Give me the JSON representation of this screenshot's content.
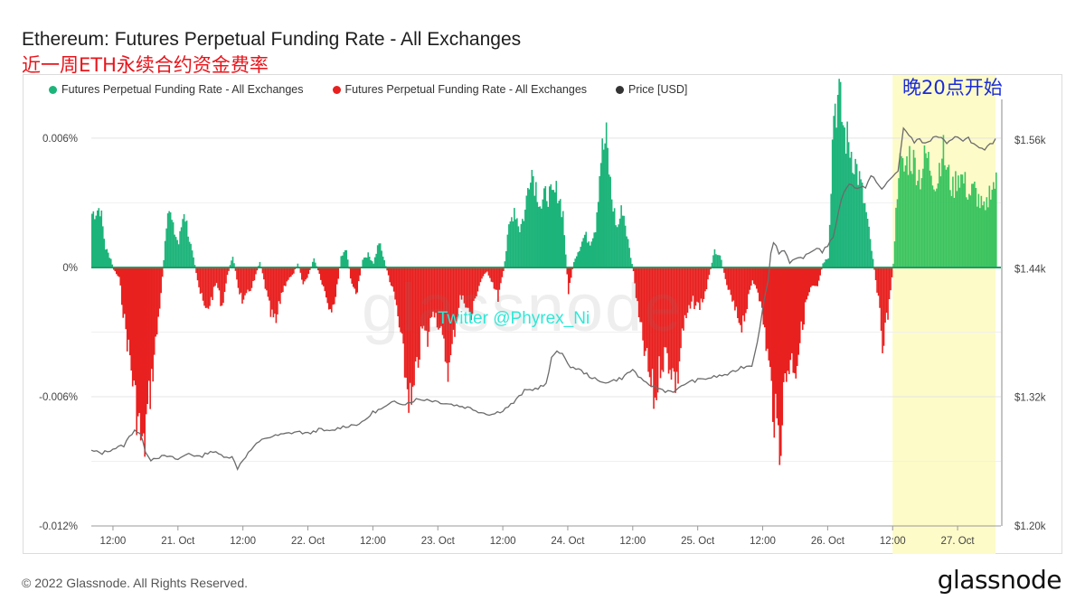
{
  "header": {
    "title": "Ethereum: Futures Perpetual Funding Rate - All Exchanges",
    "subtitle": "近一周ETH永续合约资金费率"
  },
  "legend": [
    {
      "label": "Futures Perpetual Funding Rate - All Exchanges",
      "color": "#1db47a"
    },
    {
      "label": "Futures Perpetual Funding Rate - All Exchanges",
      "color": "#e8201f"
    },
    {
      "label": "Price [USD]",
      "color": "#333333"
    }
  ],
  "annotations": {
    "highlight_note": "晚20点开始",
    "twitter": "Twitter @Phyrex_Ni",
    "watermark": "glassnode"
  },
  "footer": {
    "copyright": "© 2022 Glassnode. All Rights Reserved.",
    "logo": "glassnode"
  },
  "colors": {
    "positive": "#1db47a",
    "positive_highlight": "#3cc460",
    "negative": "#e8201f",
    "price": "#6b6b6b",
    "highlight": "#fdfbc8"
  },
  "chart_data": {
    "type": "bar",
    "x_ticks": [
      "12:00",
      "21. Oct",
      "12:00",
      "22. Oct",
      "12:00",
      "23. Oct",
      "12:00",
      "24. Oct",
      "12:00",
      "25. Oct",
      "12:00",
      "26. Oct",
      "12:00",
      "27. Oct"
    ],
    "x_tick_hours": [
      12,
      24,
      36,
      48,
      60,
      72,
      84,
      96,
      108,
      120,
      132,
      144,
      156,
      168
    ],
    "x_range_hours": [
      8,
      176
    ],
    "left_axis": {
      "ticks": [
        "0.006%",
        "0%",
        "-0.006%",
        "-0.012%"
      ],
      "tick_values": [
        0.006,
        0,
        -0.006,
        -0.012
      ],
      "range": [
        -0.012,
        0.0078
      ]
    },
    "right_axis": {
      "ticks": [
        "$1.56k",
        "$1.44k",
        "$1.32k",
        "$1.20k"
      ],
      "tick_values": [
        1560,
        1440,
        1320,
        1200
      ],
      "range": [
        1200,
        1598
      ]
    },
    "highlight_range_hours": [
      156,
      175
    ],
    "funding_rate_keypoints": [
      [
        8,
        0.0025
      ],
      [
        9.5,
        0.0028
      ],
      [
        10.5,
        0.0009
      ],
      [
        11.5,
        0.0004
      ],
      [
        12,
        -0.0001
      ],
      [
        13,
        -0.0005
      ],
      [
        14,
        -0.0025
      ],
      [
        15,
        -0.0042
      ],
      [
        16,
        -0.0062
      ],
      [
        17,
        -0.0079
      ],
      [
        17.5,
        -0.0088
      ],
      [
        18,
        -0.0072
      ],
      [
        19,
        -0.0052
      ],
      [
        20,
        -0.003
      ],
      [
        21,
        -0.0005
      ],
      [
        22,
        0.003
      ],
      [
        23,
        0.0018
      ],
      [
        24,
        0.0011
      ],
      [
        25,
        0.0027
      ],
      [
        26,
        0.0013
      ],
      [
        27,
        0.0001
      ],
      [
        28,
        -0.0012
      ],
      [
        29,
        -0.0021
      ],
      [
        30,
        -0.0015
      ],
      [
        31,
        -0.0007
      ],
      [
        32,
        -0.0018
      ],
      [
        33,
        -0.0004
      ],
      [
        34,
        0.0006
      ],
      [
        35,
        -0.0009
      ],
      [
        36,
        -0.0017
      ],
      [
        37,
        -0.0011
      ],
      [
        38,
        -0.0006
      ],
      [
        39,
        0.0003
      ],
      [
        40,
        -0.0009
      ],
      [
        41,
        -0.0022
      ],
      [
        42,
        -0.0026
      ],
      [
        43,
        -0.0012
      ],
      [
        44,
        -0.0006
      ],
      [
        45,
        -0.0004
      ],
      [
        46,
        0.0002
      ],
      [
        47,
        -0.0008
      ],
      [
        48,
        -0.0003
      ],
      [
        49,
        0.0004
      ],
      [
        50,
        -0.0003
      ],
      [
        51,
        -0.0011
      ],
      [
        52,
        -0.0019
      ],
      [
        53,
        -0.0014
      ],
      [
        54,
        0.0005
      ],
      [
        55,
        0.0008
      ],
      [
        56,
        -0.0009
      ],
      [
        57,
        -0.0011
      ],
      [
        58,
        0.0004
      ],
      [
        59,
        0.0006
      ],
      [
        60,
        0.0002
      ],
      [
        61,
        0.0012
      ],
      [
        62,
        0.0003
      ],
      [
        63,
        -0.0006
      ],
      [
        64,
        -0.0015
      ],
      [
        65,
        -0.0032
      ],
      [
        66,
        -0.0052
      ],
      [
        67,
        -0.0066
      ],
      [
        68,
        -0.0048
      ],
      [
        69,
        -0.0028
      ],
      [
        70,
        -0.0034
      ],
      [
        71,
        -0.0018
      ],
      [
        72,
        -0.0026
      ],
      [
        73,
        -0.0038
      ],
      [
        74,
        -0.0048
      ],
      [
        75,
        -0.0028
      ],
      [
        76,
        -0.0014
      ],
      [
        77,
        -0.0016
      ],
      [
        78,
        -0.0024
      ],
      [
        79,
        -0.0012
      ],
      [
        80,
        -0.0005
      ],
      [
        81,
        -0.0002
      ],
      [
        82,
        -0.0007
      ],
      [
        83,
        -0.0014
      ],
      [
        84,
        -0.0002
      ],
      [
        85,
        0.0018
      ],
      [
        86,
        0.0028
      ],
      [
        87,
        0.0018
      ],
      [
        88,
        0.0026
      ],
      [
        89,
        0.0048
      ],
      [
        90,
        0.0038
      ],
      [
        91,
        0.0028
      ],
      [
        92,
        0.0035
      ],
      [
        93,
        0.0032
      ],
      [
        94,
        0.0036
      ],
      [
        95,
        0.0025
      ],
      [
        96,
        -0.0012
      ],
      [
        97,
        0.0003
      ],
      [
        98,
        0.0009
      ],
      [
        99,
        0.0015
      ],
      [
        100,
        0.0012
      ],
      [
        101,
        0.0019
      ],
      [
        102,
        0.0052
      ],
      [
        103,
        0.0059
      ],
      [
        104,
        0.0032
      ],
      [
        105,
        0.0018
      ],
      [
        106,
        0.0028
      ],
      [
        107,
        0.0012
      ],
      [
        108,
        -0.0002
      ],
      [
        109,
        -0.0024
      ],
      [
        110,
        -0.0038
      ],
      [
        111,
        -0.0052
      ],
      [
        112,
        -0.0062
      ],
      [
        113,
        -0.0044
      ],
      [
        114,
        -0.004
      ],
      [
        115,
        -0.0046
      ],
      [
        116,
        -0.0055
      ],
      [
        117,
        -0.003
      ],
      [
        118,
        -0.0022
      ],
      [
        119,
        -0.0016
      ],
      [
        120,
        -0.0018
      ],
      [
        121,
        -0.0014
      ],
      [
        122,
        -0.0004
      ],
      [
        123,
        0.0008
      ],
      [
        124,
        0.0006
      ],
      [
        125,
        -0.0006
      ],
      [
        126,
        -0.0014
      ],
      [
        127,
        -0.0022
      ],
      [
        128,
        -0.0026
      ],
      [
        129,
        -0.0018
      ],
      [
        130,
        -0.0006
      ],
      [
        131,
        -0.001
      ],
      [
        132,
        -0.0025
      ],
      [
        133,
        -0.0045
      ],
      [
        134,
        -0.0068
      ],
      [
        135,
        -0.0082
      ],
      [
        136,
        -0.0052
      ],
      [
        137,
        -0.0042
      ],
      [
        138,
        -0.0046
      ],
      [
        139,
        -0.003
      ],
      [
        140,
        -0.0015
      ],
      [
        141,
        -0.0009
      ],
      [
        142,
        -0.001
      ],
      [
        143,
        0.0002
      ],
      [
        144,
        0.0005
      ],
      [
        145,
        0.0075
      ],
      [
        146,
        0.0078
      ],
      [
        147,
        0.0062
      ],
      [
        148,
        0.0056
      ],
      [
        149,
        0.0048
      ],
      [
        150,
        0.0038
      ],
      [
        151,
        0.0025
      ],
      [
        152,
        0.0008
      ],
      [
        153,
        -0.001
      ],
      [
        154,
        -0.0034
      ],
      [
        155,
        -0.0022
      ],
      [
        156,
        0.0002
      ],
      [
        157,
        0.0048
      ],
      [
        158,
        0.0045
      ],
      [
        159,
        0.0052
      ],
      [
        160,
        0.0048
      ],
      [
        161,
        0.0042
      ],
      [
        162,
        0.0052
      ],
      [
        163,
        0.0046
      ],
      [
        164,
        0.0038
      ],
      [
        165,
        0.0056
      ],
      [
        166,
        0.0044
      ],
      [
        167,
        0.0036
      ],
      [
        168,
        0.0044
      ],
      [
        169,
        0.004
      ],
      [
        170,
        0.0034
      ],
      [
        171,
        0.0036
      ],
      [
        172,
        0.003
      ],
      [
        173,
        0.0025
      ],
      [
        174,
        0.0038
      ],
      [
        175,
        0.0039
      ]
    ],
    "price_keypoints": [
      [
        8,
        1270
      ],
      [
        10,
        1268
      ],
      [
        12,
        1272
      ],
      [
        14,
        1275
      ],
      [
        15,
        1283
      ],
      [
        16,
        1290
      ],
      [
        17,
        1286
      ],
      [
        18,
        1270
      ],
      [
        19,
        1262
      ],
      [
        20,
        1264
      ],
      [
        22,
        1265
      ],
      [
        24,
        1262
      ],
      [
        26,
        1268
      ],
      [
        28,
        1264
      ],
      [
        30,
        1270
      ],
      [
        32,
        1266
      ],
      [
        34,
        1264
      ],
      [
        35,
        1254
      ],
      [
        36,
        1262
      ],
      [
        38,
        1274
      ],
      [
        40,
        1282
      ],
      [
        42,
        1284
      ],
      [
        44,
        1286
      ],
      [
        46,
        1288
      ],
      [
        48,
        1286
      ],
      [
        50,
        1290
      ],
      [
        52,
        1288
      ],
      [
        54,
        1292
      ],
      [
        56,
        1294
      ],
      [
        58,
        1296
      ],
      [
        60,
        1306
      ],
      [
        62,
        1310
      ],
      [
        64,
        1316
      ],
      [
        66,
        1314
      ],
      [
        68,
        1318
      ],
      [
        70,
        1318
      ],
      [
        72,
        1316
      ],
      [
        74,
        1314
      ],
      [
        76,
        1312
      ],
      [
        78,
        1310
      ],
      [
        80,
        1306
      ],
      [
        82,
        1304
      ],
      [
        84,
        1308
      ],
      [
        86,
        1315
      ],
      [
        88,
        1326
      ],
      [
        90,
        1328
      ],
      [
        92,
        1332
      ],
      [
        93,
        1356
      ],
      [
        94,
        1364
      ],
      [
        95,
        1361
      ],
      [
        96,
        1350
      ],
      [
        98,
        1346
      ],
      [
        100,
        1340
      ],
      [
        102,
        1334
      ],
      [
        104,
        1335
      ],
      [
        106,
        1338
      ],
      [
        108,
        1346
      ],
      [
        110,
        1334
      ],
      [
        112,
        1330
      ],
      [
        114,
        1326
      ],
      [
        116,
        1326
      ],
      [
        118,
        1334
      ],
      [
        120,
        1336
      ],
      [
        122,
        1338
      ],
      [
        124,
        1340
      ],
      [
        126,
        1342
      ],
      [
        128,
        1348
      ],
      [
        130,
        1350
      ],
      [
        131,
        1372
      ],
      [
        132,
        1402
      ],
      [
        133,
        1430
      ],
      [
        133.7,
        1464
      ],
      [
        134.2,
        1465
      ],
      [
        135,
        1455
      ],
      [
        136,
        1458
      ],
      [
        137,
        1445
      ],
      [
        138,
        1448
      ],
      [
        140,
        1452
      ],
      [
        142,
        1460
      ],
      [
        143,
        1456
      ],
      [
        144,
        1462
      ],
      [
        145,
        1468
      ],
      [
        146,
        1494
      ],
      [
        147,
        1512
      ],
      [
        148,
        1520
      ],
      [
        149,
        1515
      ],
      [
        150,
        1517
      ],
      [
        151,
        1516
      ],
      [
        152,
        1526
      ],
      [
        153,
        1522
      ],
      [
        154,
        1514
      ],
      [
        155,
        1520
      ],
      [
        156,
        1526
      ],
      [
        157,
        1531
      ],
      [
        158,
        1572
      ],
      [
        159,
        1564
      ],
      [
        160,
        1558
      ],
      [
        161,
        1562
      ],
      [
        162,
        1556
      ],
      [
        163,
        1560
      ],
      [
        164,
        1564
      ],
      [
        165,
        1562
      ],
      [
        166,
        1556
      ],
      [
        167,
        1560
      ],
      [
        168,
        1564
      ],
      [
        169,
        1560
      ],
      [
        170,
        1562
      ],
      [
        171,
        1556
      ],
      [
        172,
        1552
      ],
      [
        173,
        1550
      ],
      [
        174,
        1556
      ],
      [
        175,
        1560
      ]
    ]
  }
}
